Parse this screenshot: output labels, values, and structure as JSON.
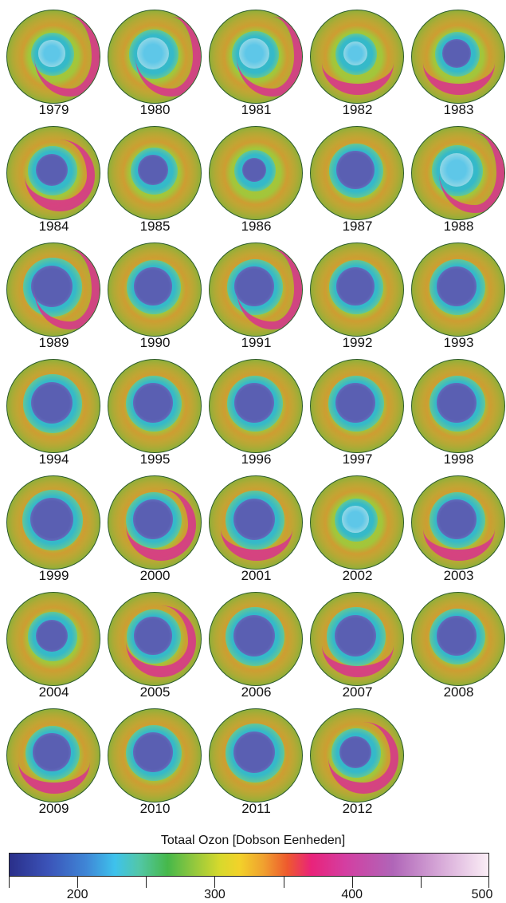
{
  "years": [
    "1979",
    "1980",
    "1981",
    "1982",
    "1983",
    "1984",
    "1985",
    "1986",
    "1987",
    "1988",
    "1989",
    "1990",
    "1991",
    "1992",
    "1993",
    "1994",
    "1995",
    "1996",
    "1997",
    "1998",
    "1999",
    "2000",
    "2001",
    "2002",
    "2003",
    "2004",
    "2005",
    "2006",
    "2007",
    "2008",
    "2009",
    "2010",
    "2011",
    "2012"
  ],
  "colorbar": {
    "title": "Totaal Ozon [Dobson Eenheden]",
    "min": 150,
    "max": 500,
    "tick_labels": [
      "200",
      "300",
      "400",
      "500"
    ]
  },
  "colors": {
    "hole_deep": "#5a5fb2",
    "hole_light": "#5ec7e8",
    "ring": "#35b9c9",
    "collar": "#7ccf7a",
    "crescent": "#d8338f"
  }
}
